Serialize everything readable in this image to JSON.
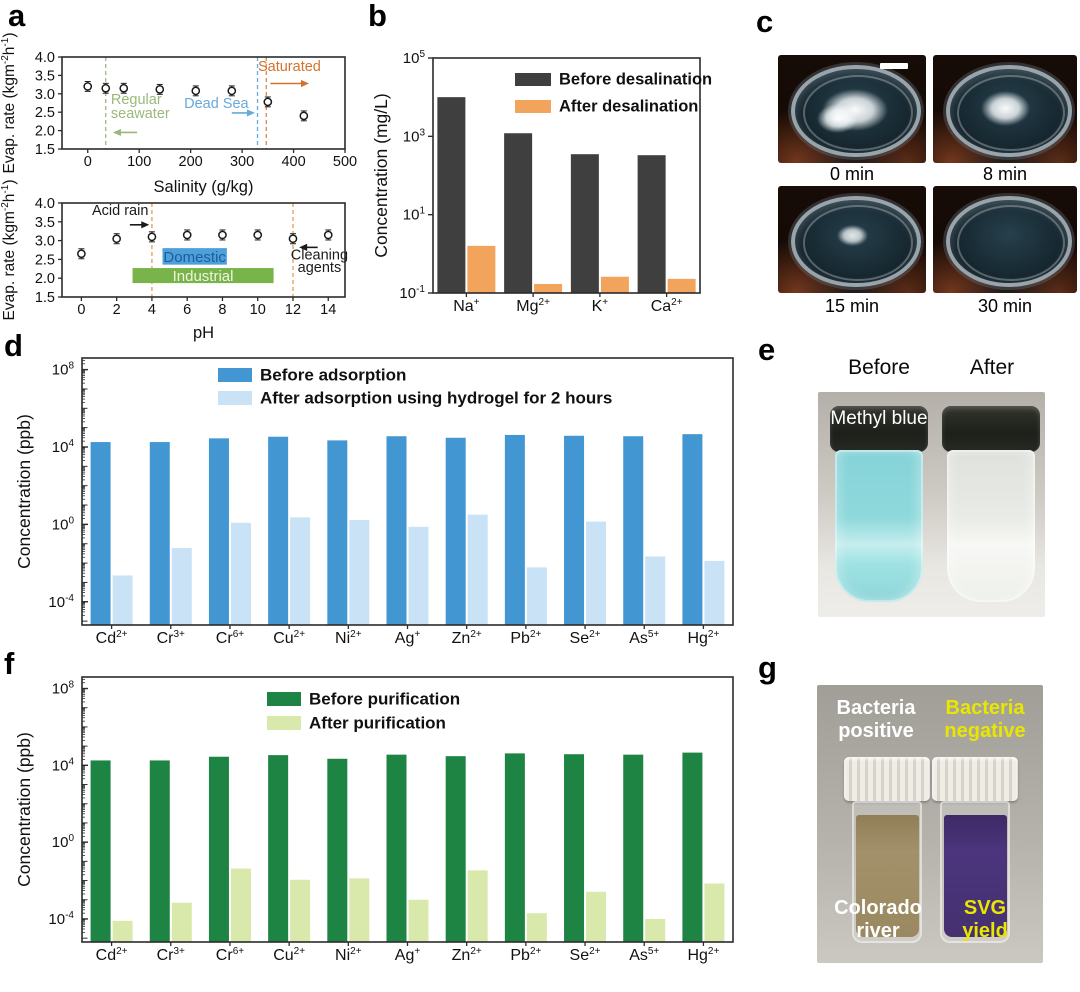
{
  "panels": {
    "a": {
      "label": "a"
    },
    "b": {
      "label": "b"
    },
    "c": {
      "label": "c",
      "photos": [
        {
          "caption": "0 min"
        },
        {
          "caption": "8 min"
        },
        {
          "caption": "15 min"
        },
        {
          "caption": "30 min"
        }
      ]
    },
    "d": {
      "label": "d"
    },
    "e": {
      "label": "e",
      "headers": [
        "Before",
        "After"
      ],
      "vial_label": "Methyl blue"
    },
    "f": {
      "label": "f"
    },
    "g": {
      "label": "g",
      "labels": {
        "top_left": "Bacteria positive",
        "top_right": "Bacteria negative",
        "bottom_left": "Colorado river",
        "bottom_right": "SVG yield"
      },
      "colors": {
        "left_text": "#ffffff",
        "right_text": "#e9e600"
      }
    }
  },
  "chart_data": [
    {
      "id": "a-top",
      "type": "scatter",
      "xlabel": "Salinity (g/kg)",
      "ylabel_segments": [
        {
          "t": "Evap. rate (kgm"
        },
        {
          "t": "-2",
          "sup": true
        },
        {
          "t": "h"
        },
        {
          "t": "-1",
          "sup": true
        },
        {
          "t": ")"
        }
      ],
      "xlim": [
        -50,
        500
      ],
      "ylim": [
        1.5,
        4.0
      ],
      "xticks": [
        0,
        100,
        200,
        300,
        400,
        500
      ],
      "yticks": [
        1.5,
        2.0,
        2.5,
        3.0,
        3.5,
        4.0
      ],
      "grid": false,
      "error": 0.08,
      "points": [
        [
          0,
          3.2
        ],
        [
          35,
          3.15
        ],
        [
          70,
          3.15
        ],
        [
          140,
          3.12
        ],
        [
          210,
          3.08
        ],
        [
          280,
          3.08
        ],
        [
          350,
          2.78
        ],
        [
          420,
          2.4
        ]
      ],
      "vlines": [
        {
          "x": 35,
          "color": "#9ab87a"
        },
        {
          "x": 330,
          "color": "#66a9dc"
        },
        {
          "x": 347,
          "color": "#de8a4a"
        }
      ],
      "annotations": [
        {
          "text": "Saturated",
          "x": 392,
          "y": 3.62,
          "color": "#d2722e",
          "anchor": "middle"
        },
        {
          "text": "Regular",
          "x": 45,
          "y": 2.72,
          "color": "#9ab87a",
          "anchor": "start"
        },
        {
          "text": "seawater",
          "x": 45,
          "y": 2.34,
          "color": "#9ab87a",
          "anchor": "start"
        },
        {
          "text": "Dead Sea",
          "x": 250,
          "y": 2.62,
          "color": "#66a9dc",
          "anchor": "middle"
        }
      ],
      "arrows": [
        {
          "x1": 355,
          "x2": 430,
          "y": 3.28,
          "color": "#d2722e"
        },
        {
          "x1": 96,
          "x2": 49,
          "y": 1.95,
          "color": "#9ab87a"
        },
        {
          "x1": 280,
          "x2": 325,
          "y": 2.48,
          "color": "#66a9dc"
        }
      ]
    },
    {
      "id": "a-bottom",
      "type": "scatter",
      "xlabel": "pH",
      "ylabel_segments": [
        {
          "t": "Evap. rate (kgm"
        },
        {
          "t": "-2",
          "sup": true
        },
        {
          "t": "h"
        },
        {
          "t": "-1",
          "sup": true
        },
        {
          "t": ")"
        }
      ],
      "xlim": [
        -1.1,
        14.95
      ],
      "ylim": [
        1.5,
        4.0
      ],
      "xticks": [
        0,
        2,
        4,
        6,
        8,
        10,
        12,
        14
      ],
      "yticks": [
        1.5,
        2.0,
        2.5,
        3.0,
        3.5,
        4.0
      ],
      "grid": false,
      "error": 0.08,
      "points": [
        [
          0,
          2.65
        ],
        [
          2,
          3.05
        ],
        [
          4,
          3.1
        ],
        [
          6,
          3.15
        ],
        [
          8,
          3.15
        ],
        [
          10,
          3.15
        ],
        [
          12,
          3.05
        ],
        [
          14,
          3.15
        ]
      ],
      "vlines": [
        {
          "x": 4,
          "color": "#e1a04d"
        },
        {
          "x": 12,
          "color": "#e1a04d"
        }
      ],
      "boxes": [
        {
          "label": "Domestic",
          "x0": 4.6,
          "x1": 8.25,
          "y0": 2.36,
          "y1": 2.8,
          "fill": "#4f9fd9",
          "text_color": "#1a5fa0"
        },
        {
          "label": "Industrial",
          "x0": 2.9,
          "x1": 10.9,
          "y0": 1.87,
          "y1": 2.27,
          "fill": "#78b44a",
          "text_color": "#eef5e0"
        }
      ],
      "annotations": [
        {
          "text": "Acid rain",
          "x": 2.2,
          "y": 3.68,
          "color": "#1a1a1a",
          "anchor": "middle"
        },
        {
          "text": "Cleaning",
          "x": 13.5,
          "y": 2.5,
          "color": "#1a1a1a",
          "anchor": "middle"
        },
        {
          "text": "agents",
          "x": 13.5,
          "y": 2.16,
          "color": "#1a1a1a",
          "anchor": "middle"
        }
      ],
      "arrows": [
        {
          "x1": 2.75,
          "x2": 3.85,
          "y": 3.42,
          "color": "#1a1a1a"
        },
        {
          "x1": 13.4,
          "x2": 12.35,
          "y": 2.82,
          "color": "#1a1a1a"
        }
      ]
    },
    {
      "id": "b",
      "type": "bar",
      "log": true,
      "ylabel": "Concentration (mg/L)",
      "categories": [
        {
          "t": "Na",
          "s": "+"
        },
        {
          "t": "Mg",
          "s": "2+"
        },
        {
          "t": "K",
          "s": "+"
        },
        {
          "t": "Ca",
          "s": "2+"
        }
      ],
      "ylim_exp": [
        -1,
        5
      ],
      "ytick_exps": [
        5,
        3,
        1,
        -1
      ],
      "legend_position": "top-right-inside",
      "series": [
        {
          "name": "Before desalination",
          "color": "#3f3f3f",
          "values": [
            10000,
            1200,
            350,
            330
          ]
        },
        {
          "name": "After desalination",
          "color": "#f2a45c",
          "values": [
            1.6,
            0.17,
            0.26,
            0.23
          ]
        }
      ]
    },
    {
      "id": "d",
      "type": "bar",
      "log": true,
      "ylabel": "Concentration (ppb)",
      "categories": [
        {
          "t": "Cd",
          "s": "2+"
        },
        {
          "t": "Cr",
          "s": "3+"
        },
        {
          "t": "Cr",
          "s": "6+"
        },
        {
          "t": "Cu",
          "s": "2+"
        },
        {
          "t": "Ni",
          "s": "2+"
        },
        {
          "t": "Ag",
          "s": "+"
        },
        {
          "t": "Zn",
          "s": "2+"
        },
        {
          "t": "Pb",
          "s": "2+"
        },
        {
          "t": "Se",
          "s": "2+"
        },
        {
          "t": "As",
          "s": "5+"
        },
        {
          "t": "Hg",
          "s": "2+"
        }
      ],
      "ylim_exp": [
        -5.2,
        8.6
      ],
      "ytick_exps": [
        8,
        4,
        0,
        -4
      ],
      "legend_position": "top-inside",
      "series": [
        {
          "name": "Before adsorption",
          "color": "#4296d2",
          "values": [
            18000,
            18000,
            28000,
            34000,
            22000,
            36000,
            30000,
            42000,
            38000,
            36000,
            46000
          ]
        },
        {
          "name": "After adsorption using hydrogel for 2 hours",
          "color": "#c9e2f5",
          "values": [
            0.0023,
            0.06,
            1.2,
            2.3,
            1.7,
            0.75,
            3.2,
            0.006,
            1.4,
            0.022,
            0.013
          ]
        }
      ]
    },
    {
      "id": "f",
      "type": "bar",
      "log": true,
      "ylabel": "Concentration (ppb)",
      "categories": [
        {
          "t": "Cd",
          "s": "2+"
        },
        {
          "t": "Cr",
          "s": "3+"
        },
        {
          "t": "Cr",
          "s": "6+"
        },
        {
          "t": "Cu",
          "s": "2+"
        },
        {
          "t": "Ni",
          "s": "2+"
        },
        {
          "t": "Ag",
          "s": "+"
        },
        {
          "t": "Zn",
          "s": "2+"
        },
        {
          "t": "Pb",
          "s": "2+"
        },
        {
          "t": "Se",
          "s": "2+"
        },
        {
          "t": "As",
          "s": "5+"
        },
        {
          "t": "Hg",
          "s": "2+"
        }
      ],
      "ylim_exp": [
        -5.2,
        8.6
      ],
      "ytick_exps": [
        8,
        4,
        0,
        -4
      ],
      "legend_position": "top-inside",
      "series": [
        {
          "name": "Before purification",
          "color": "#1e8444",
          "values": [
            18000,
            18000,
            28000,
            34000,
            22000,
            36000,
            30000,
            42000,
            38000,
            36000,
            46000
          ]
        },
        {
          "name": "After purification",
          "color": "#d9e8ab",
          "values": [
            8e-05,
            0.0007,
            0.042,
            0.011,
            0.013,
            0.001,
            0.034,
            0.0002,
            0.0026,
            0.0001,
            0.007
          ]
        }
      ]
    }
  ]
}
